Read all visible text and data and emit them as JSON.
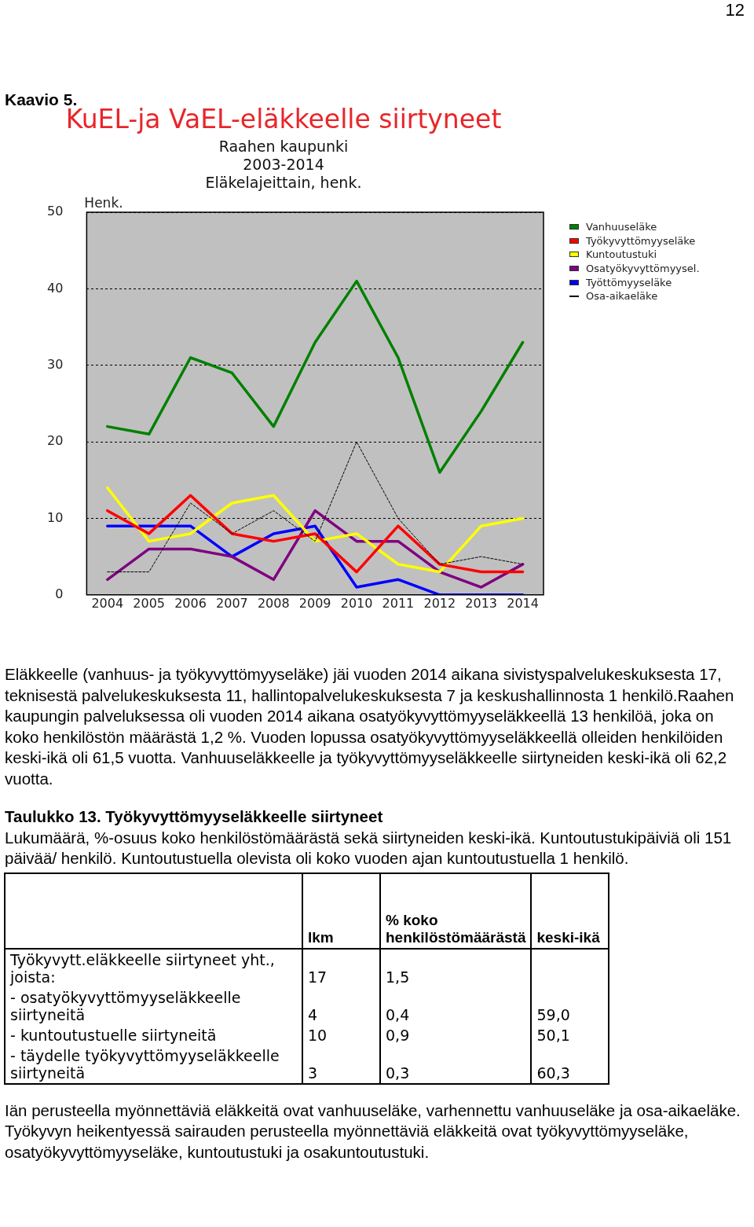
{
  "chart_data": {
    "type": "line",
    "title": "KuEL-ja VaEL-eläkkeelle siirtyneet",
    "subtitle": [
      "Raahen kaupunki",
      "2003-2014",
      "Eläkelajeittain, henk."
    ],
    "ylabel": "Henk.",
    "categories": [
      "2004",
      "2005",
      "2006",
      "2007",
      "2008",
      "2009",
      "2010",
      "2011",
      "2012",
      "2013",
      "2014"
    ],
    "series": [
      {
        "name": "Vanhuuseläke",
        "color": "#008000",
        "values": [
          22,
          21,
          31,
          29,
          22,
          33,
          41,
          31,
          16,
          24,
          33
        ]
      },
      {
        "name": "Työkyvyttömyyseläke",
        "color": "#ff0000",
        "values": [
          11,
          8,
          13,
          8,
          7,
          8,
          3,
          9,
          4,
          3,
          3
        ]
      },
      {
        "name": "Kuntoutustuki",
        "color": "#ffff00",
        "values": [
          14,
          7,
          8,
          12,
          13,
          7,
          8,
          4,
          3,
          9,
          10
        ]
      },
      {
        "name": "Osatyökyvyttömyysel.",
        "color": "#800080",
        "values": [
          2,
          6,
          6,
          5,
          2,
          11,
          7,
          7,
          3,
          1,
          4
        ]
      },
      {
        "name": "Työttömyyseläke",
        "color": "#0000ff",
        "values": [
          9,
          9,
          9,
          5,
          8,
          9,
          1,
          2,
          0,
          0,
          0
        ]
      },
      {
        "name": "Osa-aikaeläke",
        "color": "#000000",
        "line_style": "dashed",
        "values": [
          3,
          3,
          12,
          8,
          11,
          7,
          20,
          10,
          4,
          5,
          4
        ]
      }
    ],
    "ylim": [
      0,
      50
    ],
    "yticks": [
      0,
      10,
      20,
      30,
      40,
      50
    ],
    "grid": "y",
    "legend": "top right",
    "marker": "none",
    "annotations": [
      "12",
      "Kaavio  5.",
      "Eläkkeelle (vanhuus- ja työkyvyttömyyseläke) jäi vuoden 2014 aikana sivistyspalvelukeskuksesta 17, teknisestä palvelukeskuksesta 11, hallintopalvelukeskuksesta 7 ja keskushallinnosta 1 henkilö.Raahen kaupungin palveluksessa oli vuoden 2014 aikana osatyökyvyttömyyseläkkeellä 13 henkilöä, joka on koko henkilöstön määrästä 1,2 %. Vuoden lopussa osatyökyvyttömyyseläkkeellä olleiden henkilöiden keski-ikä oli 61,5 vuotta. Vanhuuseläkkeelle ja työkyvyttömyyseläkkeelle siirtyneiden keski-ikä oli 62,2 vuotta.",
      "Taulukko 13.  Työkyvyttömyyseläkkeelle siirtyneet",
      "Lukumäärä, %-osuus koko henkilöstömäärästä sekä siirtyneiden keski-ikä.  Kuntoutustukipäiviä oli 151 päivää/ henkilö. Kuntoutustuella olevista oli koko vuoden ajan kuntoutustuella 1 henkilö.",
      "lkm",
      "% koko henkilöstömäärästä",
      "keski-ikä",
      "Työkyvytt.eläkkeelle siirtyneet yht., joista:",
      "17",
      "1,5",
      "- osatyökyvyttömyyseläkkeelle siirtyneitä",
      "4",
      "0,4",
      "59,0",
      "- kuntoutustuelle siirtyneitä",
      "10",
      "0,9",
      "50,1",
      "- täydelle työkyvyttömyyseläkkeelle siirtyneitä",
      "3",
      "0,3",
      "60,3",
      "Iän perusteella myönnettäviä eläkkeitä ovat vanhuuseläke, varhennettu vanhuuseläke ja osa-aikaeläke. Työkyvyn heikentyessä sairauden perusteella myönnettäviä eläkkeitä ovat työkyvyttömyyseläke, osatyökyvyttömyyseläke, kuntoutustuki ja osakuntoutustuki."
    ]
  }
}
